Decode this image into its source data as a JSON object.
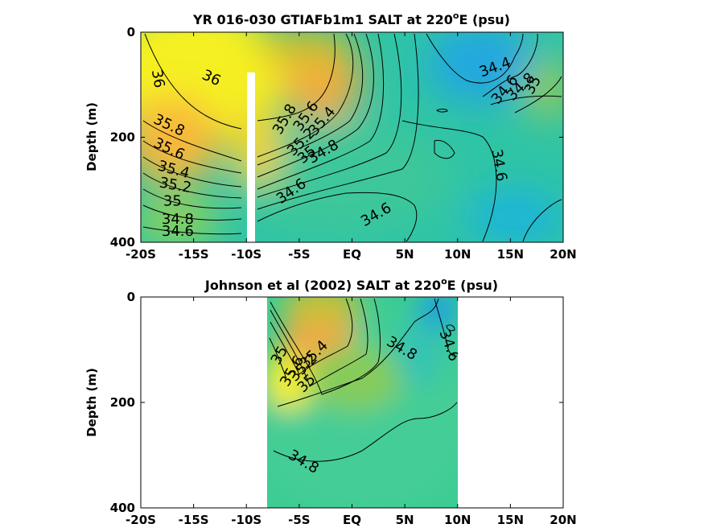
{
  "chart_data": [
    {
      "type": "heatmap",
      "title": "YR 016-030 GTIAFb1m1 SALT at 220°E (psu)",
      "title_parts": {
        "main": "YR 016-030 GTIAFb1m1 SALT at 220",
        "sup": "o",
        "end": "E (psu)"
      },
      "ylabel": "Depth (m)",
      "xlim": [
        -20,
        20
      ],
      "ylim": [
        0,
        400
      ],
      "y_reversed": true,
      "x_ticks": [
        -20,
        -15,
        -10,
        -5,
        0,
        5,
        10,
        15,
        20
      ],
      "x_tick_labels": [
        "-20S",
        "-15S",
        "-10S",
        "-5S",
        "EQ",
        "5N",
        "10N",
        "15N",
        "20N"
      ],
      "y_ticks": [
        0,
        200,
        400
      ],
      "y_tick_labels": [
        "0",
        "200",
        "400"
      ],
      "colormap_range": [
        34.4,
        36.0
      ],
      "data_gap": {
        "x": [
          -10.4,
          -9.6
        ],
        "depth": [
          80,
          400
        ]
      },
      "features": [
        {
          "lat": -13,
          "depth": 40,
          "salt": 36.1,
          "sx": 8,
          "sd": 140
        },
        {
          "lat": -15,
          "depth": 170,
          "salt": 35.9,
          "sx": 7,
          "sd": 70
        },
        {
          "lat": -3,
          "depth": 100,
          "salt": 35.7,
          "sx": 4,
          "sd": 80
        },
        {
          "lat": -1,
          "depth": 20,
          "salt": 35.5,
          "sx": 3,
          "sd": 80
        },
        {
          "lat": 12,
          "depth": 60,
          "salt": 34.4,
          "sx": 4,
          "sd": 60
        },
        {
          "lat": 18,
          "depth": 100,
          "salt": 35.0,
          "sx": 3,
          "sd": 40
        },
        {
          "lat": 10,
          "depth": 250,
          "salt": 34.65,
          "sx": 5,
          "sd": 120
        }
      ],
      "contour_labels": [
        {
          "text": "36",
          "lat": -18.8,
          "depth": 90,
          "rot": 80
        },
        {
          "text": "36",
          "lat": -13.5,
          "depth": 95,
          "rot": 25
        },
        {
          "text": "35.8",
          "lat": -17.5,
          "depth": 185,
          "rot": 25
        },
        {
          "text": "35.6",
          "lat": -17.5,
          "depth": 230,
          "rot": 25
        },
        {
          "text": "35.4",
          "lat": -17,
          "depth": 270,
          "rot": 15
        },
        {
          "text": "35.2",
          "lat": -16.8,
          "depth": 300,
          "rot": 10
        },
        {
          "text": "35",
          "lat": -17,
          "depth": 330,
          "rot": 0
        },
        {
          "text": "34.8",
          "lat": -16.5,
          "depth": 365,
          "rot": 0
        },
        {
          "text": "34.6",
          "lat": -16.5,
          "depth": 420,
          "rot": 0
        },
        {
          "text": "35.8",
          "lat": -6,
          "depth": 170,
          "rot": -60
        },
        {
          "text": "35.6",
          "lat": -4,
          "depth": 165,
          "rot": -55
        },
        {
          "text": "35.4",
          "lat": -2.5,
          "depth": 175,
          "rot": -50
        },
        {
          "text": "35.2",
          "lat": -4.5,
          "depth": 215,
          "rot": -45
        },
        {
          "text": "35",
          "lat": -4,
          "depth": 240,
          "rot": -40
        },
        {
          "text": "34.8",
          "lat": -2.5,
          "depth": 235,
          "rot": -30
        },
        {
          "text": "34.6",
          "lat": -5.5,
          "depth": 310,
          "rot": -35
        },
        {
          "text": "34.6",
          "lat": 2.5,
          "depth": 355,
          "rot": -30
        },
        {
          "text": "34.6",
          "lat": 13.5,
          "depth": 255,
          "rot": 80
        },
        {
          "text": "34.4",
          "lat": 13.7,
          "depth": 75,
          "rot": -20
        },
        {
          "text": "34.6",
          "lat": 14.8,
          "depth": 115,
          "rot": -50
        },
        {
          "text": "34.8",
          "lat": 16.3,
          "depth": 110,
          "rot": -45
        },
        {
          "text": "35",
          "lat": 17.5,
          "depth": 105,
          "rot": -60
        }
      ]
    },
    {
      "type": "heatmap",
      "title": "Johnson et al (2002) SALT at 220°E (psu)",
      "title_parts": {
        "main": "Johnson et al (2002) SALT at 220",
        "sup": "o",
        "end": "E (psu)"
      },
      "ylabel": "Depth (m)",
      "xlim": [
        -20,
        20
      ],
      "ylim": [
        0,
        400
      ],
      "y_reversed": true,
      "x_ticks": [
        -20,
        -15,
        -10,
        -5,
        0,
        5,
        10,
        15,
        20
      ],
      "x_tick_labels": [
        "-20S",
        "-15S",
        "-10S",
        "-5S",
        "EQ",
        "5N",
        "10N",
        "15N",
        "20N"
      ],
      "y_ticks": [
        0,
        200,
        400
      ],
      "y_tick_labels": [
        "0",
        "200",
        "400"
      ],
      "colormap_range": [
        34.4,
        36.0
      ],
      "data_extent": {
        "x": [
          -8,
          10
        ],
        "depth": [
          0,
          400
        ]
      },
      "features": [
        {
          "lat": -7,
          "depth": 150,
          "salt": 36.0,
          "sx": 2.5,
          "sd": 55
        },
        {
          "lat": -3,
          "depth": 90,
          "salt": 35.6,
          "sx": 3,
          "sd": 70
        },
        {
          "lat": 9,
          "depth": 20,
          "salt": 34.35,
          "sx": 2,
          "sd": 60
        },
        {
          "lat": 2,
          "depth": 300,
          "salt": 34.75,
          "sx": 8,
          "sd": 150
        }
      ],
      "contour_labels": [
        {
          "text": "35",
          "lat": -6.5,
          "depth": 115,
          "rot": -60
        },
        {
          "text": "35.6",
          "lat": -5.3,
          "depth": 145,
          "rot": -60
        },
        {
          "text": "35.4",
          "lat": -3.3,
          "depth": 115,
          "rot": -45
        },
        {
          "text": "35.2",
          "lat": -4.3,
          "depth": 140,
          "rot": -45
        },
        {
          "text": "35",
          "lat": -4,
          "depth": 170,
          "rot": -45
        },
        {
          "text": "34.8",
          "lat": 4.5,
          "depth": 105,
          "rot": 30
        },
        {
          "text": "34.6",
          "lat": 8.8,
          "depth": 95,
          "rot": 70
        },
        {
          "text": "34.8",
          "lat": -4.8,
          "depth": 320,
          "rot": 30
        }
      ]
    }
  ]
}
